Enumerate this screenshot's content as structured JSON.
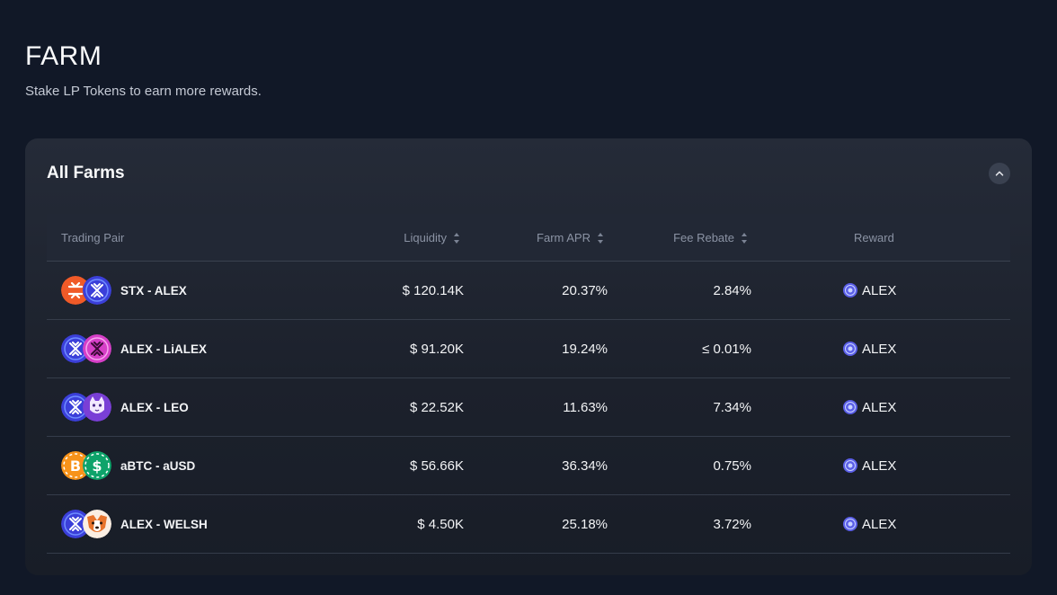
{
  "page": {
    "title": "FARM",
    "subtitle": "Stake LP Tokens to earn more rewards."
  },
  "panel": {
    "title": "All Farms"
  },
  "table": {
    "headers": {
      "pair": "Trading Pair",
      "liquidity": "Liquidity",
      "apr": "Farm APR",
      "fee": "Fee Rebate",
      "reward": "Reward"
    },
    "rows": [
      {
        "pair": "STX - ALEX",
        "liquidity": "$ 120.14K",
        "apr": "20.37%",
        "fee": "2.84%",
        "reward": "ALEX",
        "icon1": "stx-token-icon",
        "icon2": "alex-token-icon"
      },
      {
        "pair": "ALEX - LiALEX",
        "liquidity": "$ 91.20K",
        "apr": "19.24%",
        "fee": "≤ 0.01%",
        "reward": "ALEX",
        "icon1": "alex-token-icon",
        "icon2": "lialex-token-icon"
      },
      {
        "pair": "ALEX - LEO",
        "liquidity": "$ 22.52K",
        "apr": "11.63%",
        "fee": "7.34%",
        "reward": "ALEX",
        "icon1": "alex-token-icon",
        "icon2": "leo-token-icon"
      },
      {
        "pair": "aBTC - aUSD",
        "liquidity": "$ 56.66K",
        "apr": "36.34%",
        "fee": "0.75%",
        "reward": "ALEX",
        "icon1": "abtc-token-icon",
        "icon2": "ausd-token-icon"
      },
      {
        "pair": "ALEX - WELSH",
        "liquidity": "$ 4.50K",
        "apr": "25.18%",
        "fee": "3.72%",
        "reward": "ALEX",
        "icon1": "alex-token-icon",
        "icon2": "welsh-token-icon"
      }
    ]
  },
  "colors": {
    "background": "#111827",
    "panel": "#252b38",
    "stx": "#f05a28",
    "alex": "#3b3fd9",
    "lialex": "#d63fc7",
    "leo": "#7a3fd6",
    "abtc": "#f7931a",
    "ausd": "#0ea36a",
    "welsh": "#e8742c"
  }
}
